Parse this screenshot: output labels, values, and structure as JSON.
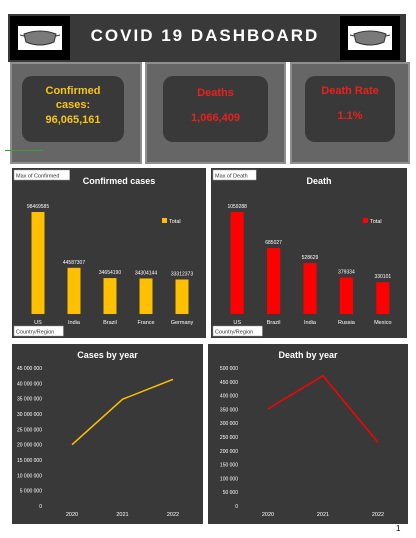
{
  "header": {
    "title": "COVID 19 DASHBOARD"
  },
  "kpis": {
    "confirmed": {
      "label": "Confirmed cases:",
      "value": "96,065,161"
    },
    "deaths": {
      "label": "Deaths",
      "value": "1,066,409"
    },
    "death_rate": {
      "label": "Death Rate",
      "value": "1.1%"
    }
  },
  "colors": {
    "confirmed": "#ffc000",
    "deaths": "#ff0000",
    "panel": "#3a3939"
  },
  "page_number": "1",
  "chart_data": [
    {
      "type": "bar",
      "title": "Confirmed cases",
      "field_tag": "Max of Confirmed",
      "axis_tag": "Country/Region",
      "categories": [
        "US",
        "India",
        "Brazil",
        "France",
        "Germany"
      ],
      "series": [
        {
          "name": "Total",
          "values": [
            98469585,
            44587307,
            34654190,
            34304144,
            33312373
          ]
        }
      ],
      "value_labels": [
        "98469585",
        "44587307",
        "34654190",
        "34304144",
        "33312373"
      ],
      "legend": "top-right"
    },
    {
      "type": "bar",
      "title": "Death",
      "field_tag": "Max of Death",
      "axis_tag": "Country/Region",
      "categories": [
        "US",
        "Brazil",
        "India",
        "Russia",
        "Mexico"
      ],
      "series": [
        {
          "name": "Total",
          "values": [
            1059288,
            685027,
            528629,
            379334,
            330101
          ]
        }
      ],
      "value_labels": [
        "1059288",
        "685027",
        "528629",
        "379334",
        "330101"
      ],
      "legend": "top-right"
    },
    {
      "type": "line",
      "title": "Cases by year",
      "x": [
        "2020",
        "2021",
        "2022"
      ],
      "series": [
        {
          "values": [
            20000000,
            34800000,
            41300000
          ]
        }
      ],
      "ylim": [
        0,
        45000000
      ],
      "yticks": [
        "0",
        "5000000",
        "10000000",
        "15000000",
        "20000000",
        "25000000",
        "30000000",
        "35000000",
        "40000000",
        "45000000"
      ],
      "ytick_labels": [
        "0",
        "5 000 000",
        "10 000 000",
        "15 000 000",
        "20 000 000",
        "25 000 000",
        "30 000 000",
        "35 000 000",
        "40 000 000",
        "45 000 000"
      ]
    },
    {
      "type": "line",
      "title": "Death by year",
      "x": [
        "2020",
        "2021",
        "2022"
      ],
      "series": [
        {
          "values": [
            352000,
            472000,
            230000
          ]
        }
      ],
      "ylim": [
        0,
        500000
      ],
      "yticks": [
        "0",
        "50000",
        "100000",
        "150000",
        "200000",
        "250000",
        "300000",
        "350000",
        "400000",
        "450000",
        "500000"
      ],
      "ytick_labels": [
        "0",
        "50 000",
        "100 000",
        "150 000",
        "200 000",
        "250 000",
        "300 000",
        "350 000",
        "400 000",
        "450 000",
        "500 000"
      ]
    }
  ]
}
